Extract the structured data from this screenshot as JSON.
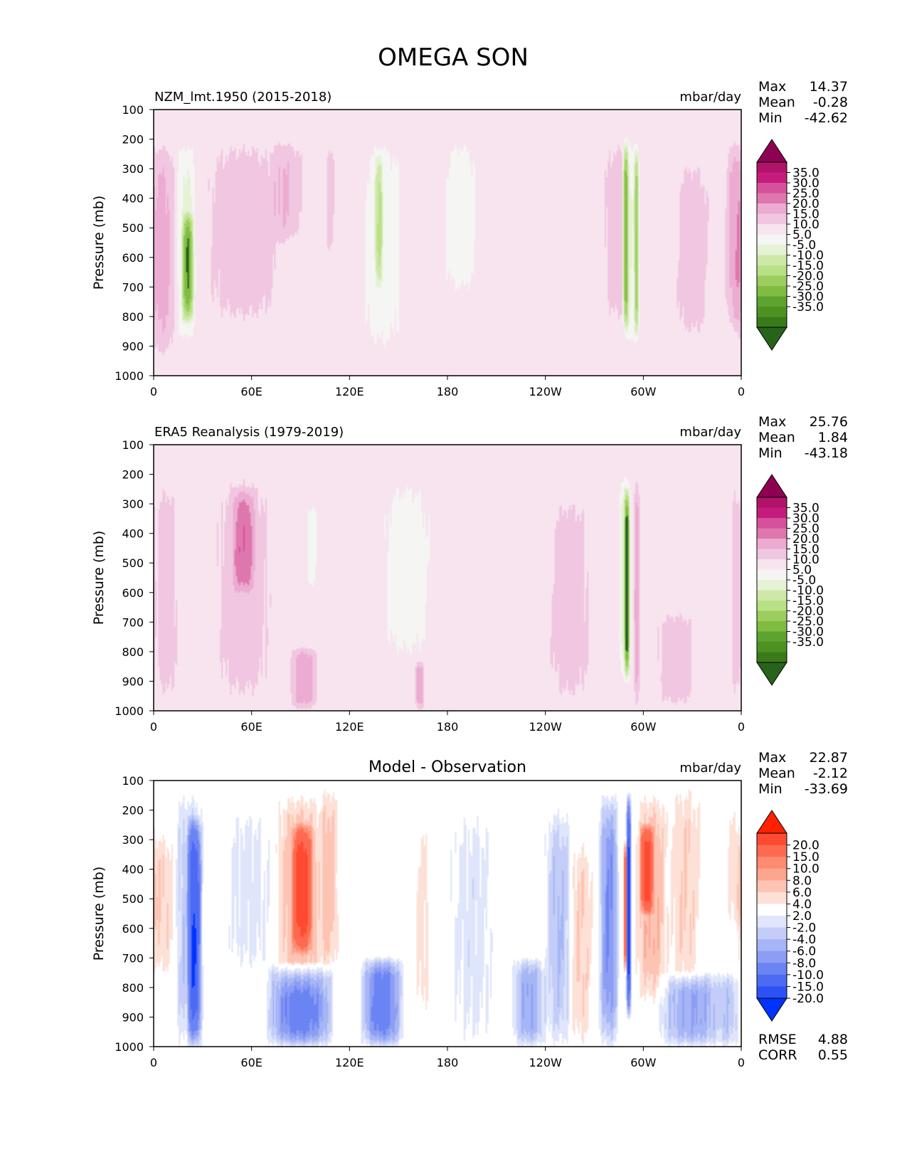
{
  "figure_title": "OMEGA SON",
  "chart_data": [
    {
      "type": "heatmap",
      "id": "model",
      "title_left": "NZM_lmt.1950 (2015-2018)",
      "title_center": "",
      "units": "mbar/day",
      "ylabel": "Pressure (mb)",
      "yticks": [
        "100",
        "200",
        "300",
        "400",
        "500",
        "600",
        "700",
        "800",
        "900",
        "1000"
      ],
      "xticks": [
        "0",
        "60E",
        "120E",
        "180",
        "120W",
        "60W",
        "0"
      ],
      "stats": [
        {
          "label": "Max",
          "value": "14.37"
        },
        {
          "label": "Mean",
          "value": "-0.28"
        },
        {
          "label": "Min",
          "value": "-42.62"
        }
      ],
      "colorbar_labels": [
        "35.0",
        "30.0",
        "25.0",
        "20.0",
        "15.0",
        "10.0",
        "5.0",
        "-5.0",
        "-10.0",
        "-15.0",
        "-20.0",
        "-25.0",
        "-30.0",
        "-35.0"
      ],
      "colorbar_colors": [
        "#8e0152",
        "#b1136b",
        "#c51b7d",
        "#d6519c",
        "#de77ae",
        "#ecabd0",
        "#f1c6e0",
        "#f7e4ef",
        "#f5f5f3",
        "#e6f2d6",
        "#cfe8a8",
        "#b8e186",
        "#9ccd5e",
        "#7fbc41",
        "#5da331",
        "#4d9221",
        "#3b7a1a",
        "#276419"
      ],
      "colorbar_extend": "both",
      "features": [
        {
          "lon": 5,
          "lon_w": 18,
          "p_top": 200,
          "p_bot": 950,
          "value": 12
        },
        {
          "lon": 20,
          "lon_w": 14,
          "p_top": 200,
          "p_bot": 900,
          "value": -12
        },
        {
          "lon": 21,
          "lon_w": 7,
          "p_top": 450,
          "p_bot": 820,
          "value": -24
        },
        {
          "lon": 55,
          "lon_w": 55,
          "p_top": 180,
          "p_bot": 850,
          "value": 8
        },
        {
          "lon": 83,
          "lon_w": 22,
          "p_top": 200,
          "p_bot": 550,
          "value": 8
        },
        {
          "lon": 108,
          "lon_w": 6,
          "p_top": 200,
          "p_bot": 600,
          "value": 8
        },
        {
          "lon": 140,
          "lon_w": 30,
          "p_top": 170,
          "p_bot": 950,
          "value": -8
        },
        {
          "lon": 138,
          "lon_w": 5,
          "p_top": 240,
          "p_bot": 700,
          "value": -14
        },
        {
          "lon": 188,
          "lon_w": 25,
          "p_top": 180,
          "p_bot": 750,
          "value": -8
        },
        {
          "lon": 285,
          "lon_w": 22,
          "p_top": 180,
          "p_bot": 850,
          "value": 8
        },
        {
          "lon": 292,
          "lon_w": 8,
          "p_top": 180,
          "p_bot": 900,
          "value": -16
        },
        {
          "lon": 289,
          "lon_w": 4,
          "p_top": 200,
          "p_bot": 850,
          "value": -32
        },
        {
          "lon": 296,
          "lon_w": 3,
          "p_top": 220,
          "p_bot": 880,
          "value": -28
        },
        {
          "lon": 330,
          "lon_w": 25,
          "p_top": 250,
          "p_bot": 900,
          "value": 8
        },
        {
          "lon": 355,
          "lon_w": 10,
          "p_top": 200,
          "p_bot": 850,
          "value": 12
        }
      ]
    },
    {
      "type": "heatmap",
      "id": "observation",
      "title_left": "ERA5 Reanalysis (1979-2019)",
      "title_center": "",
      "units": "mbar/day",
      "ylabel": "Pressure (mb)",
      "yticks": [
        "100",
        "200",
        "300",
        "400",
        "500",
        "600",
        "700",
        "800",
        "900",
        "1000"
      ],
      "xticks": [
        "0",
        "60E",
        "120E",
        "180",
        "120W",
        "60W",
        "0"
      ],
      "stats": [
        {
          "label": "Max",
          "value": "25.76"
        },
        {
          "label": "Mean",
          "value": "1.84"
        },
        {
          "label": "Min",
          "value": "-43.18"
        }
      ],
      "colorbar_labels": [
        "35.0",
        "30.0",
        "25.0",
        "20.0",
        "15.0",
        "10.0",
        "5.0",
        "-5.0",
        "-10.0",
        "-15.0",
        "-20.0",
        "-25.0",
        "-30.0",
        "-35.0"
      ],
      "colorbar_colors": [
        "#8e0152",
        "#b1136b",
        "#c51b7d",
        "#d6519c",
        "#de77ae",
        "#ecabd0",
        "#f1c6e0",
        "#f7e4ef",
        "#f5f5f3",
        "#e6f2d6",
        "#cfe8a8",
        "#b8e186",
        "#9ccd5e",
        "#7fbc41",
        "#5da331",
        "#4d9221",
        "#3b7a1a",
        "#276419"
      ],
      "colorbar_extend": "both",
      "features": [
        {
          "lon": 8,
          "lon_w": 16,
          "p_top": 200,
          "p_bot": 1000,
          "value": 8
        },
        {
          "lon": 55,
          "lon_w": 40,
          "p_top": 170,
          "p_bot": 1000,
          "value": 8
        },
        {
          "lon": 55,
          "lon_w": 14,
          "p_top": 250,
          "p_bot": 600,
          "value": 12
        },
        {
          "lon": 92,
          "lon_w": 18,
          "p_top": 780,
          "p_bot": 1000,
          "value": 14
        },
        {
          "lon": 97,
          "lon_w": 8,
          "p_top": 280,
          "p_bot": 600,
          "value": -8
        },
        {
          "lon": 155,
          "lon_w": 35,
          "p_top": 200,
          "p_bot": 850,
          "value": -8
        },
        {
          "lon": 163,
          "lon_w": 6,
          "p_top": 820,
          "p_bot": 1000,
          "value": 14
        },
        {
          "lon": 255,
          "lon_w": 30,
          "p_top": 250,
          "p_bot": 1000,
          "value": 8
        },
        {
          "lon": 289,
          "lon_w": 8,
          "p_top": 200,
          "p_bot": 900,
          "value": -16
        },
        {
          "lon": 290,
          "lon_w": 3,
          "p_top": 250,
          "p_bot": 900,
          "value": -30
        },
        {
          "lon": 296,
          "lon_w": 4,
          "p_top": 200,
          "p_bot": 1000,
          "value": 14
        },
        {
          "lon": 320,
          "lon_w": 30,
          "p_top": 650,
          "p_bot": 1000,
          "value": 8
        },
        {
          "lon": 357,
          "lon_w": 8,
          "p_top": 200,
          "p_bot": 1000,
          "value": 8
        }
      ]
    },
    {
      "type": "heatmap",
      "id": "difference",
      "title_left": "",
      "title_center": "Model - Observation",
      "units": "mbar/day",
      "ylabel": "Pressure (mb)",
      "yticks": [
        "100",
        "200",
        "300",
        "400",
        "500",
        "600",
        "700",
        "800",
        "900",
        "1000"
      ],
      "xticks": [
        "0",
        "60E",
        "120E",
        "180",
        "120W",
        "60W",
        "0"
      ],
      "stats": [
        {
          "label": "Max",
          "value": "22.87"
        },
        {
          "label": "Mean",
          "value": "-2.12"
        },
        {
          "label": "Min",
          "value": "-33.69"
        }
      ],
      "extra_stats": [
        {
          "label": "RMSE",
          "value": "4.88"
        },
        {
          "label": "CORR",
          "value": "0.55"
        }
      ],
      "colorbar_labels": [
        "20.0",
        "15.0",
        "10.0",
        "8.0",
        "6.0",
        "4.0",
        "2.0",
        "-2.0",
        "-4.0",
        "-6.0",
        "-8.0",
        "-10.0",
        "-15.0",
        "-20.0"
      ],
      "colorbar_colors": [
        "#ff2200",
        "#fd4a31",
        "#fd6a4f",
        "#fd8b70",
        "#fda58f",
        "#fdc3b3",
        "#fde0d6",
        "#ffffff",
        "#dfe5fa",
        "#c3cdf7",
        "#a5b5f6",
        "#8c9df4",
        "#6b84f3",
        "#4d6af5",
        "#2c52f7",
        "#0033ff"
      ],
      "colorbar_extend": "both",
      "features": [
        {
          "lon": 5,
          "lon_w": 16,
          "p_top": 280,
          "p_bot": 760,
          "value": 4
        },
        {
          "lon": 22,
          "lon_w": 18,
          "p_top": 150,
          "p_bot": 1000,
          "value": -6
        },
        {
          "lon": 25,
          "lon_w": 8,
          "p_top": 230,
          "p_bot": 1000,
          "value": -15
        },
        {
          "lon": 58,
          "lon_w": 30,
          "p_top": 200,
          "p_bot": 750,
          "value": -3
        },
        {
          "lon": 90,
          "lon_w": 30,
          "p_top": 150,
          "p_bot": 820,
          "value": 6
        },
        {
          "lon": 91,
          "lon_w": 12,
          "p_top": 250,
          "p_bot": 680,
          "value": 12
        },
        {
          "lon": 108,
          "lon_w": 10,
          "p_top": 120,
          "p_bot": 750,
          "value": 5
        },
        {
          "lon": 90,
          "lon_w": 40,
          "p_top": 720,
          "p_bot": 1000,
          "value": -12
        },
        {
          "lon": 140,
          "lon_w": 25,
          "p_top": 700,
          "p_bot": 1000,
          "value": -12
        },
        {
          "lon": 165,
          "lon_w": 10,
          "p_top": 250,
          "p_bot": 900,
          "value": 3
        },
        {
          "lon": 195,
          "lon_w": 28,
          "p_top": 200,
          "p_bot": 1000,
          "value": -3
        },
        {
          "lon": 230,
          "lon_w": 20,
          "p_top": 700,
          "p_bot": 1000,
          "value": -8
        },
        {
          "lon": 248,
          "lon_w": 16,
          "p_top": 200,
          "p_bot": 1000,
          "value": -6
        },
        {
          "lon": 262,
          "lon_w": 14,
          "p_top": 300,
          "p_bot": 1000,
          "value": 4
        },
        {
          "lon": 279,
          "lon_w": 12,
          "p_top": 150,
          "p_bot": 1000,
          "value": -10
        },
        {
          "lon": 291,
          "lon_w": 3,
          "p_top": 150,
          "p_bot": 900,
          "value": -22
        },
        {
          "lon": 289,
          "lon_w": 2,
          "p_top": 300,
          "p_bot": 750,
          "value": 18
        },
        {
          "lon": 305,
          "lon_w": 20,
          "p_top": 150,
          "p_bot": 850,
          "value": 6
        },
        {
          "lon": 302,
          "lon_w": 8,
          "p_top": 250,
          "p_bot": 550,
          "value": 12
        },
        {
          "lon": 326,
          "lon_w": 20,
          "p_top": 120,
          "p_bot": 800,
          "value": 4
        },
        {
          "lon": 330,
          "lon_w": 40,
          "p_top": 750,
          "p_bot": 1000,
          "value": -8
        },
        {
          "lon": 356,
          "lon_w": 12,
          "p_top": 200,
          "p_bot": 600,
          "value": 3
        },
        {
          "lon": 353,
          "lon_w": 12,
          "p_top": 750,
          "p_bot": 1000,
          "value": -5
        }
      ]
    }
  ]
}
